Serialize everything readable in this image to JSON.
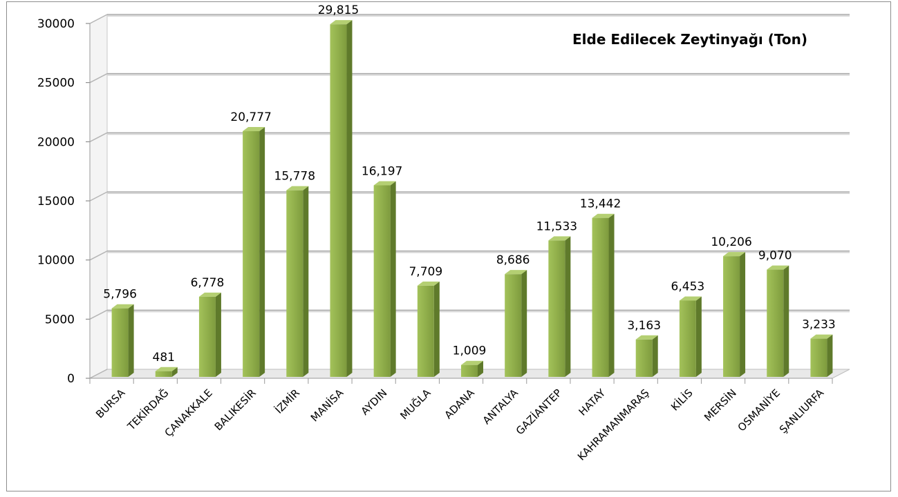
{
  "chart_data": {
    "type": "bar",
    "title": "Elde Edilecek Zeytinyağı (Ton)",
    "xlabel": "",
    "ylabel": "",
    "ylim": [
      0,
      30000
    ],
    "yticks": [
      0,
      5000,
      10000,
      15000,
      20000,
      25000,
      30000
    ],
    "grid": true,
    "legend": "none",
    "bar_color": "#8fad4a",
    "categories": [
      "BURSA",
      "TEKİRDAĞ",
      "ÇANAKKALE",
      "BALIKESİR",
      "İZMİR",
      "MANİSA",
      "AYDIN",
      "MUĞLA",
      "ADANA",
      "ANTALYA",
      "GAZİANTEP",
      "HATAY",
      "KAHRAMANMARAŞ",
      "KİLİS",
      "MERSİN",
      "OSMANİYE",
      "ŞANLIURFA"
    ],
    "values": [
      5796,
      481,
      6778,
      20777,
      15778,
      29815,
      16197,
      7709,
      1009,
      8686,
      11533,
      13442,
      3163,
      6453,
      10206,
      9070,
      3233
    ],
    "data_labels": [
      "5,796",
      "481",
      "6,778",
      "20,777",
      "15,778",
      "29,815",
      "16,197",
      "7,709",
      "1,009",
      "8,686",
      "11,533",
      "13,442",
      "3,163",
      "6,453",
      "10,206",
      "9,070",
      "3,233"
    ]
  }
}
